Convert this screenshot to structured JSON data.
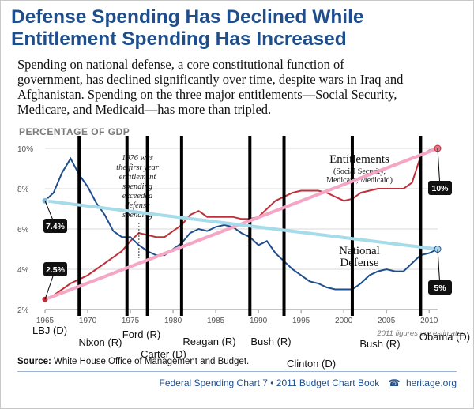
{
  "title_line1": "Defense Spending Has Declined While",
  "title_line2": "Entitlement Spending Has Increased",
  "subtitle_lines": [
    "Spending on national defense, a core constitutional function of",
    "government, has declined significantly over time, despite wars in Iraq and",
    "Afghanistan. Spending on the three major entitlements—Social Security,",
    "Medicare, and Medicaid—has more than tripled."
  ],
  "source_label": "Source:",
  "source_text": "White House Office of Management and Budget.",
  "footer_text": "Federal Spending Chart 7 • 2011 Budget Chart Book",
  "footer_site": "heritage.org",
  "chart_data": {
    "type": "line",
    "ylabel": "PERCENTAGE OF GDP",
    "xlim": [
      1965,
      2011
    ],
    "ylim": [
      2,
      10
    ],
    "yticks": [
      2,
      4,
      6,
      8,
      10
    ],
    "ytick_labels": [
      "2%",
      "4%",
      "6%",
      "8%",
      "10%"
    ],
    "xticks": [
      1965,
      1970,
      1975,
      1980,
      1985,
      1990,
      1995,
      2000,
      2005,
      2010
    ],
    "xtick_labels": [
      "1965",
      "1970",
      "1975",
      "1980",
      "1985",
      "1990",
      "1995",
      "2000",
      "2005",
      "2010"
    ],
    "estimate_note": "2011 figures are estimates",
    "annotation": [
      "1976 was",
      "the first year",
      "entitlement",
      "spending",
      "exceeded",
      "defense",
      "spending"
    ],
    "annotation_year": 1976,
    "series": [
      {
        "name": "Entitlements",
        "label_lines": [
          "Entitlements",
          "(Social Security,",
          "Medicare, Medicaid)"
        ],
        "color": "#c0303a",
        "x": [
          1965,
          1966,
          1967,
          1968,
          1969,
          1970,
          1971,
          1972,
          1973,
          1974,
          1975,
          1976,
          1977,
          1978,
          1979,
          1980,
          1981,
          1982,
          1983,
          1984,
          1985,
          1986,
          1987,
          1988,
          1989,
          1990,
          1991,
          1992,
          1993,
          1994,
          1995,
          1996,
          1997,
          1998,
          1999,
          2000,
          2001,
          2002,
          2003,
          2004,
          2005,
          2006,
          2007,
          2008,
          2009,
          2010,
          2011
        ],
        "y": [
          2.5,
          2.7,
          3.0,
          3.3,
          3.5,
          3.7,
          4.0,
          4.3,
          4.6,
          4.9,
          5.4,
          5.8,
          5.7,
          5.6,
          5.6,
          5.9,
          6.2,
          6.7,
          6.9,
          6.6,
          6.6,
          6.6,
          6.6,
          6.5,
          6.5,
          6.6,
          7.0,
          7.4,
          7.6,
          7.8,
          7.9,
          7.9,
          7.9,
          7.8,
          7.6,
          7.4,
          7.5,
          7.8,
          7.9,
          8.0,
          8.0,
          8.0,
          8.0,
          8.3,
          9.6,
          9.9,
          10.0
        ]
      },
      {
        "name": "National Defense",
        "label_lines": [
          "National",
          "Defense"
        ],
        "color": "#1f4e8c",
        "x": [
          1965,
          1966,
          1967,
          1968,
          1969,
          1970,
          1971,
          1972,
          1973,
          1974,
          1975,
          1976,
          1977,
          1978,
          1979,
          1980,
          1981,
          1982,
          1983,
          1984,
          1985,
          1986,
          1987,
          1988,
          1989,
          1990,
          1991,
          1992,
          1993,
          1994,
          1995,
          1996,
          1997,
          1998,
          1999,
          2000,
          2001,
          2002,
          2003,
          2004,
          2005,
          2006,
          2007,
          2008,
          2009,
          2010,
          2011
        ],
        "y": [
          7.4,
          7.8,
          8.8,
          9.5,
          8.7,
          8.1,
          7.3,
          6.7,
          5.9,
          5.6,
          5.6,
          5.2,
          4.9,
          4.7,
          4.7,
          5.0,
          5.3,
          5.8,
          6.0,
          5.9,
          6.1,
          6.2,
          6.1,
          5.8,
          5.6,
          5.2,
          5.4,
          4.8,
          4.4,
          4.0,
          3.7,
          3.4,
          3.3,
          3.1,
          3.0,
          3.0,
          3.0,
          3.3,
          3.7,
          3.9,
          4.0,
          3.9,
          3.9,
          4.3,
          4.7,
          4.8,
          5.0
        ]
      },
      {
        "name": "",
        "color": "#f4a6c4",
        "x": [
          1965,
          2011
        ],
        "y": [
          2.5,
          10.0
        ],
        "start_label": "2.5%",
        "end_label": "10%"
      },
      {
        "name": "",
        "color": "#a6dbea",
        "x": [
          1965,
          2011
        ],
        "y": [
          7.4,
          5.0
        ],
        "start_label": "7.4%",
        "end_label": "5%"
      }
    ],
    "administrations": [
      {
        "name": "LBJ (D)",
        "start": 1965
      },
      {
        "name": "Nixon (R)",
        "start": 1969
      },
      {
        "name": "Ford (R)",
        "start": 1974.6
      },
      {
        "name": "Carter (D)",
        "start": 1977
      },
      {
        "name": "Reagan (R)",
        "start": 1981
      },
      {
        "name": "Bush (R)",
        "start": 1989
      },
      {
        "name": "Clinton (D)",
        "start": 1993
      },
      {
        "name": "Bush (R)",
        "start": 2001
      },
      {
        "name": "Obama (D)",
        "start": 2009
      }
    ]
  }
}
